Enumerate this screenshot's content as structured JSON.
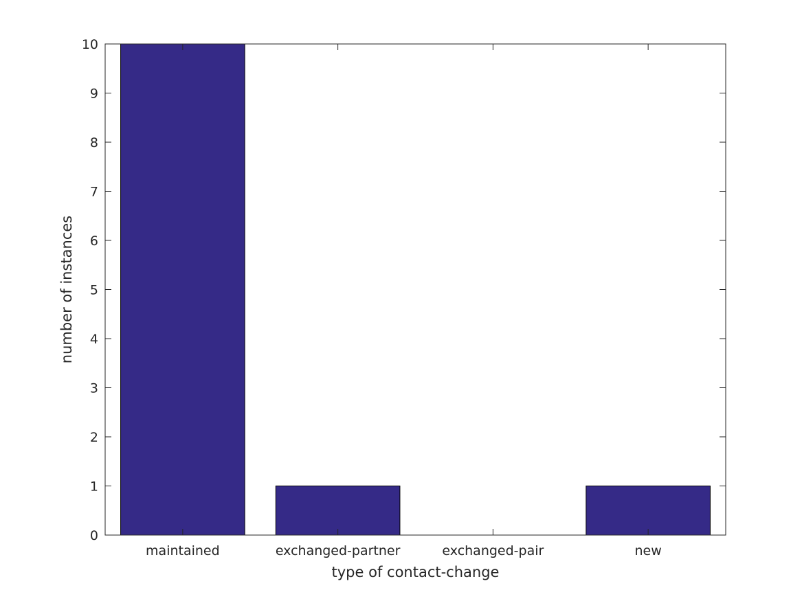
{
  "chart_data": {
    "type": "bar",
    "categories": [
      "maintained",
      "exchanged-partner",
      "exchanged-pair",
      "new"
    ],
    "values": [
      10,
      1,
      0,
      1
    ],
    "title": "",
    "xlabel": "type of contact-change",
    "ylabel": "number of instances",
    "ylim": [
      0,
      10
    ],
    "yticks": [
      "0",
      "1",
      "2",
      "3",
      "4",
      "5",
      "6",
      "7",
      "8",
      "9",
      "10"
    ],
    "grid": false,
    "bar_color": "#352a87",
    "axis_color": "#262626"
  }
}
